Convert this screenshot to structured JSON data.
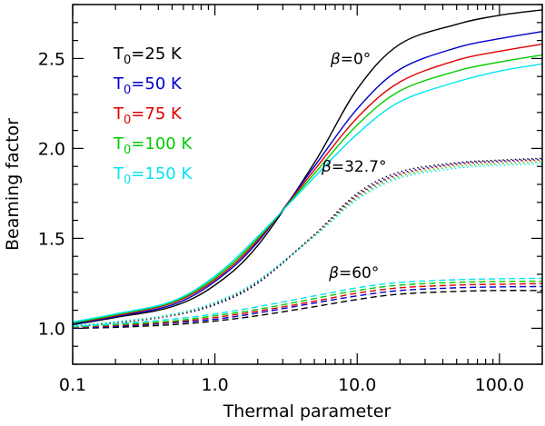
{
  "chart_data": {
    "type": "line",
    "xscale": "log",
    "xlim": [
      0.1,
      200
    ],
    "ylim": [
      0.8,
      2.8
    ],
    "xlabel": "Thermal parameter",
    "ylabel": "Beaming factor",
    "xticks": [
      {
        "value": 0.1,
        "label": "0.1"
      },
      {
        "value": 1,
        "label": "1.0"
      },
      {
        "value": 10,
        "label": "10.0"
      },
      {
        "value": 100,
        "label": "100.0"
      }
    ],
    "yticks": [
      {
        "value": 1.0,
        "label": "1.0"
      },
      {
        "value": 1.5,
        "label": "1.5"
      },
      {
        "value": 2.0,
        "label": "2.0"
      },
      {
        "value": 2.5,
        "label": "2.5"
      }
    ],
    "x": [
      0.1,
      0.2,
      0.5,
      1,
      2,
      5,
      10,
      20,
      50,
      100,
      200
    ],
    "legend": {
      "placement": "top-left",
      "entries": [
        {
          "prefix": "T",
          "sub": "0",
          "suffix": "=25  K",
          "color": "#000000"
        },
        {
          "prefix": "T",
          "sub": "0",
          "suffix": "=50  K",
          "color": "#0000cc"
        },
        {
          "prefix": "T",
          "sub": "0",
          "suffix": "=75  K",
          "color": "#e00000"
        },
        {
          "prefix": "T",
          "sub": "0",
          "suffix": "=100  K",
          "color": "#00cc00"
        },
        {
          "prefix": "T",
          "sub": "0",
          "suffix": "=150  K",
          "color": "#00e5ee"
        }
      ]
    },
    "annotations": [
      {
        "symbol": "β",
        "text": "=0°",
        "x": 9,
        "y": 2.5
      },
      {
        "symbol": "β",
        "text": "=32.7°",
        "x": 9.5,
        "y": 1.9
      },
      {
        "symbol": "β",
        "text": "=60°",
        "x": 9.5,
        "y": 1.31
      }
    ],
    "series": [
      {
        "name": "T0=25 K, β=0°",
        "group": "beta0",
        "style": "solid",
        "color": "#000000",
        "values": [
          1.02,
          1.06,
          1.12,
          1.24,
          1.46,
          1.92,
          2.33,
          2.58,
          2.69,
          2.74,
          2.77
        ]
      },
      {
        "name": "T0=50 K, β=0°",
        "group": "beta0",
        "style": "solid",
        "color": "#0000cc",
        "values": [
          1.025,
          1.065,
          1.13,
          1.26,
          1.48,
          1.9,
          2.22,
          2.44,
          2.56,
          2.61,
          2.65
        ]
      },
      {
        "name": "T0=75 K, β=0°",
        "group": "beta0",
        "style": "solid",
        "color": "#e00000",
        "values": [
          1.03,
          1.07,
          1.14,
          1.27,
          1.49,
          1.88,
          2.17,
          2.37,
          2.49,
          2.54,
          2.58
        ]
      },
      {
        "name": "T0=100 K, β=0°",
        "group": "beta0",
        "style": "solid",
        "color": "#00cc00",
        "values": [
          1.03,
          1.075,
          1.145,
          1.28,
          1.5,
          1.86,
          2.13,
          2.32,
          2.43,
          2.48,
          2.52
        ]
      },
      {
        "name": "T0=150 K, β=0°",
        "group": "beta0",
        "style": "solid",
        "color": "#00e5ee",
        "values": [
          1.035,
          1.08,
          1.15,
          1.29,
          1.51,
          1.84,
          2.08,
          2.26,
          2.37,
          2.43,
          2.47
        ]
      },
      {
        "name": "T0=25 K, β=32.7°",
        "group": "beta32",
        "style": "dotted",
        "color": "#000000",
        "values": [
          1.01,
          1.03,
          1.07,
          1.13,
          1.25,
          1.52,
          1.75,
          1.87,
          1.92,
          1.935,
          1.945
        ]
      },
      {
        "name": "T0=50 K, β=32.7°",
        "group": "beta32",
        "style": "dotted",
        "color": "#0000cc",
        "values": [
          1.01,
          1.03,
          1.07,
          1.135,
          1.255,
          1.52,
          1.74,
          1.86,
          1.915,
          1.93,
          1.94
        ]
      },
      {
        "name": "T0=75 K, β=32.7°",
        "group": "beta32",
        "style": "dotted",
        "color": "#e00000",
        "values": [
          1.012,
          1.032,
          1.072,
          1.14,
          1.26,
          1.52,
          1.735,
          1.855,
          1.91,
          1.925,
          1.935
        ]
      },
      {
        "name": "T0=100 K, β=32.7°",
        "group": "beta32",
        "style": "dotted",
        "color": "#00cc00",
        "values": [
          1.013,
          1.034,
          1.075,
          1.142,
          1.262,
          1.515,
          1.725,
          1.845,
          1.9,
          1.915,
          1.925
        ]
      },
      {
        "name": "T0=150 K, β=32.7°",
        "group": "beta32",
        "style": "dotted",
        "color": "#00e5ee",
        "values": [
          1.015,
          1.036,
          1.078,
          1.145,
          1.265,
          1.51,
          1.715,
          1.835,
          1.89,
          1.905,
          1.915
        ]
      },
      {
        "name": "T0=25 K, β=60°",
        "group": "beta60",
        "style": "dashed",
        "color": "#000000",
        "values": [
          1.0,
          1.005,
          1.02,
          1.04,
          1.07,
          1.12,
          1.16,
          1.19,
          1.205,
          1.21,
          1.21
        ]
      },
      {
        "name": "T0=50 K, β=60°",
        "group": "beta60",
        "style": "dashed",
        "color": "#0000cc",
        "values": [
          1.003,
          1.01,
          1.03,
          1.05,
          1.085,
          1.14,
          1.18,
          1.21,
          1.225,
          1.23,
          1.232
        ]
      },
      {
        "name": "T0=75 K, β=60°",
        "group": "beta60",
        "style": "dashed",
        "color": "#e00000",
        "values": [
          1.005,
          1.015,
          1.035,
          1.06,
          1.095,
          1.15,
          1.195,
          1.225,
          1.24,
          1.245,
          1.248
        ]
      },
      {
        "name": "T0=100 K, β=60°",
        "group": "beta60",
        "style": "dashed",
        "color": "#00cc00",
        "values": [
          1.007,
          1.02,
          1.04,
          1.07,
          1.105,
          1.165,
          1.21,
          1.24,
          1.255,
          1.26,
          1.262
        ]
      },
      {
        "name": "T0=150 K, β=60°",
        "group": "beta60",
        "style": "dashed",
        "color": "#00e5ee",
        "values": [
          1.01,
          1.025,
          1.05,
          1.08,
          1.12,
          1.18,
          1.225,
          1.255,
          1.27,
          1.275,
          1.278
        ]
      }
    ]
  }
}
